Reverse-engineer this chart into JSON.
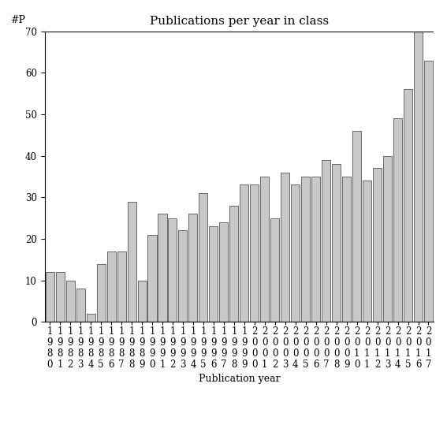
{
  "title": "Publications per year in class",
  "xlabel": "Publication year",
  "ylabel": "#P",
  "years": [
    "1980",
    "1981",
    "1982",
    "1983",
    "1984",
    "1985",
    "1986",
    "1987",
    "1988",
    "1989",
    "1990",
    "1991",
    "1992",
    "1993",
    "1994",
    "1995",
    "1996",
    "1997",
    "1998",
    "1999",
    "2000",
    "2001",
    "2002",
    "2003",
    "2004",
    "2005",
    "2006",
    "2007",
    "2008",
    "2009",
    "2010",
    "2011",
    "2012",
    "2013",
    "2014",
    "2015",
    "2016",
    "2017"
  ],
  "values": [
    12,
    12,
    10,
    8,
    2,
    14,
    17,
    17,
    29,
    10,
    21,
    26,
    25,
    22,
    26,
    31,
    23,
    24,
    28,
    33,
    33,
    35,
    25,
    36,
    33,
    35,
    35,
    39,
    38,
    35,
    46,
    34,
    37,
    40,
    49,
    56,
    70,
    63
  ],
  "bar_color": "#c8c8c8",
  "bar_edge_color": "#555555",
  "ylim": [
    0,
    70
  ],
  "yticks": [
    0,
    10,
    20,
    30,
    40,
    50,
    60,
    70
  ],
  "background_color": "#ffffff",
  "title_fontsize": 11,
  "label_fontsize": 9,
  "tick_fontsize": 8.5
}
